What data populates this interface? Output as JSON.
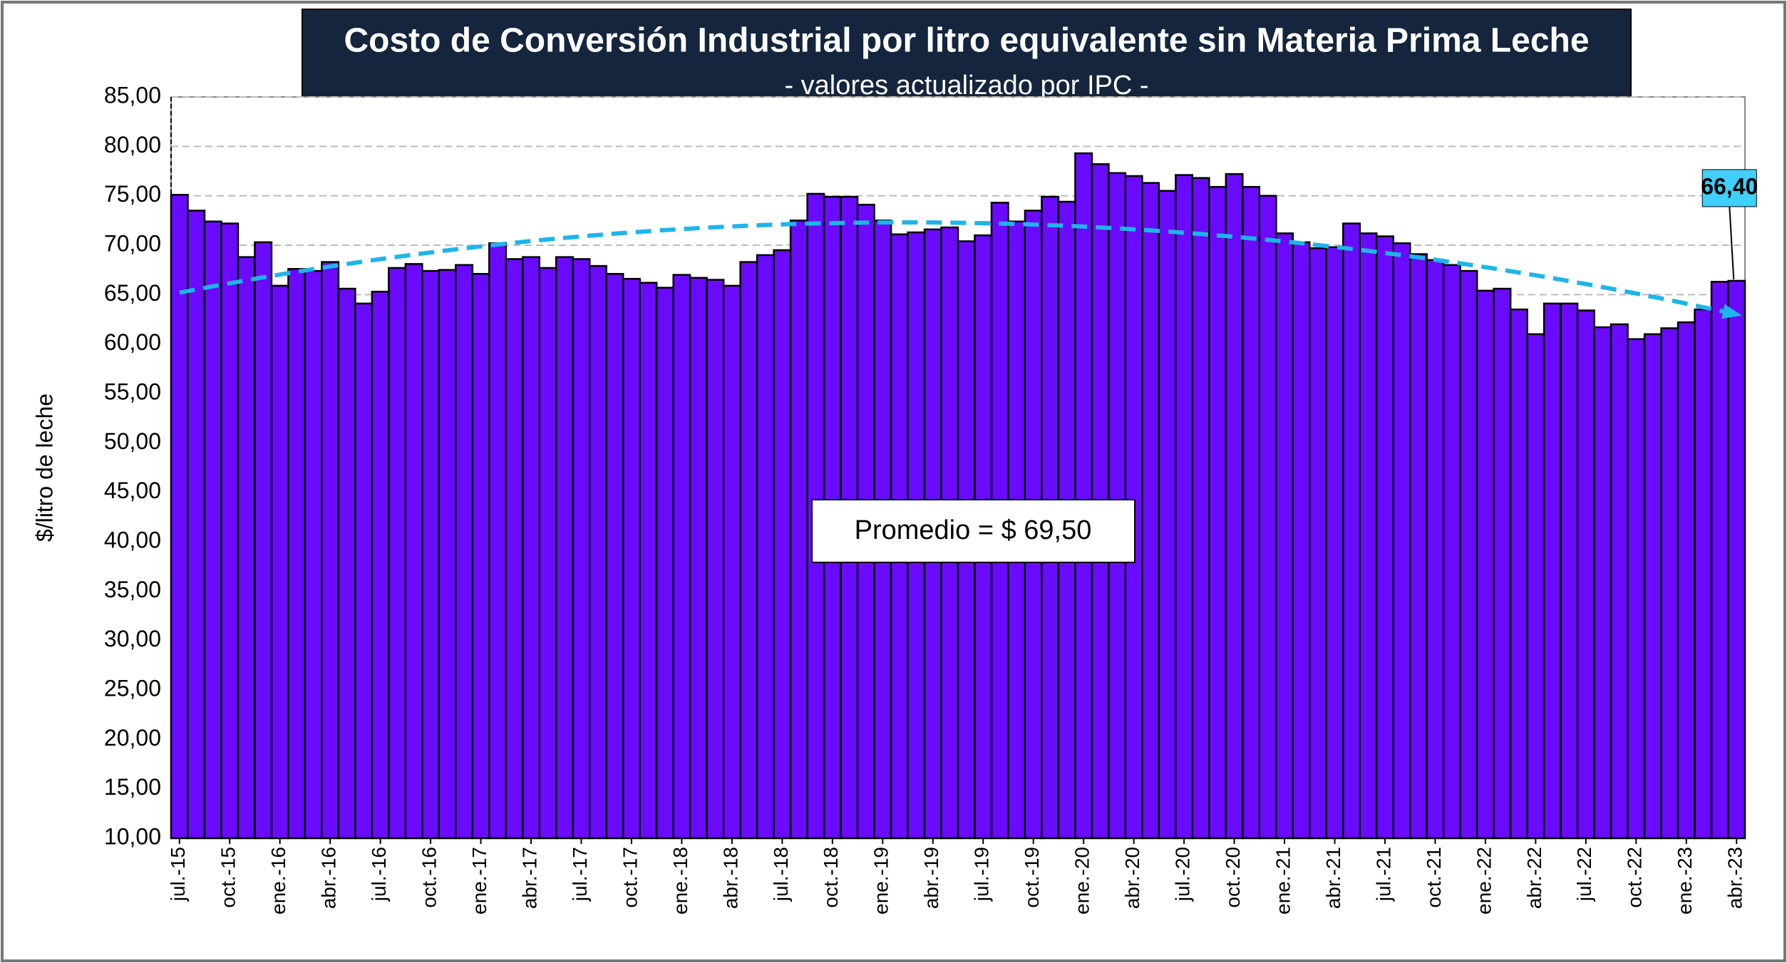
{
  "chart_data": {
    "type": "bar",
    "title": "Costo de Conversión Industrial por litro equivalente sin Materia Prima Leche",
    "subtitle": "- valores actualizado por IPC -",
    "y_label": "$/litro de leche",
    "annotation": "Promedio = $ 69,50",
    "color": "#6a0aff",
    "categories": [
      "jul.-15",
      null,
      null,
      "oct.-15",
      null,
      null,
      "ene.-16",
      null,
      null,
      "abr.-16",
      null,
      null,
      "jul.-16",
      null,
      null,
      "oct.-16",
      null,
      null,
      "ene.-17",
      null,
      null,
      "abr.-17",
      null,
      null,
      "jul.-17",
      null,
      null,
      "oct.-17",
      null,
      null,
      "ene.-18",
      null,
      null,
      "abr.-18",
      null,
      null,
      "jul.-18",
      null,
      null,
      "oct.-18",
      null,
      null,
      "ene.-19",
      null,
      null,
      "abr.-19",
      null,
      null,
      "jul.-19",
      null,
      null,
      "oct.-19",
      null,
      null,
      "ene.-20",
      null,
      null,
      "abr.-20",
      null,
      null,
      "jul.-20",
      null,
      null,
      "oct.-20",
      null,
      null,
      "ene.-21",
      null,
      null,
      "abr.-21",
      null,
      null,
      "jul.-21",
      null,
      null,
      "oct.-21",
      null,
      null,
      "ene.-22",
      null,
      null,
      "abr.-22",
      null,
      null,
      "jul.-22",
      null,
      null,
      "oct.-22",
      null,
      null,
      "ene.-23",
      null,
      null,
      "abr.-23"
    ],
    "values": [
      75.1,
      73.5,
      72.4,
      72.2,
      68.8,
      70.3,
      65.9,
      67.6,
      67.4,
      68.3,
      65.6,
      64.1,
      65.3,
      67.7,
      68.1,
      67.4,
      67.5,
      68.0,
      67.1,
      70.2,
      68.6,
      68.8,
      67.7,
      68.8,
      68.6,
      67.9,
      67.1,
      66.6,
      66.2,
      65.7,
      67.0,
      66.7,
      66.5,
      65.9,
      68.3,
      69.0,
      69.5,
      72.5,
      75.2,
      74.9,
      74.9,
      74.1,
      72.5,
      71.1,
      71.3,
      71.6,
      71.8,
      70.4,
      71.0,
      74.3,
      72.4,
      73.5,
      74.9,
      74.4,
      79.3,
      78.2,
      77.3,
      77.0,
      76.3,
      75.5,
      77.1,
      76.8,
      75.9,
      77.2,
      75.9,
      75.0,
      71.2,
      70.3,
      69.7,
      69.8,
      72.2,
      71.2,
      70.9,
      70.2,
      69.1,
      68.5,
      68.0,
      67.4,
      65.4,
      65.6,
      63.5,
      61.0,
      64.1,
      64.1,
      63.4,
      61.7,
      62.0,
      60.5,
      61.0,
      61.6,
      62.2,
      63.5,
      66.3,
      66.4
    ],
    "value_labels": [
      null,
      null,
      null,
      null,
      null,
      null,
      null,
      null,
      null,
      null,
      null,
      null,
      null,
      null,
      null,
      null,
      null,
      null,
      null,
      null,
      null,
      null,
      null,
      null,
      null,
      null,
      null,
      null,
      null,
      null,
      null,
      null,
      null,
      null,
      null,
      null,
      null,
      null,
      null,
      null,
      null,
      null,
      null,
      null,
      null,
      null,
      null,
      null,
      null,
      null,
      null,
      null,
      null,
      null,
      null,
      null,
      null,
      null,
      null,
      null,
      null,
      null,
      null,
      null,
      null,
      null,
      null,
      null,
      null,
      null,
      null,
      null,
      null,
      null,
      null,
      null,
      null,
      null,
      null,
      null,
      null,
      null,
      null,
      null,
      null,
      null,
      null,
      null,
      null,
      null,
      null,
      null,
      null,
      "66,40"
    ],
    "trendline": {
      "color": "#1fb4ea",
      "categories": [
        "jul.-15",
        "abr.-19",
        "abr.-23"
      ],
      "values": [
        65.2,
        72.3,
        63.0
      ]
    },
    "ylim": [
      10,
      85
    ],
    "yticks": [
      {
        "value": 10,
        "label": "10,00"
      },
      {
        "value": 15,
        "label": "15,00"
      },
      {
        "value": 20,
        "label": "20,00"
      },
      {
        "value": 25,
        "label": "25,00"
      },
      {
        "value": 30,
        "label": "30,00"
      },
      {
        "value": 35,
        "label": "35,00"
      },
      {
        "value": 40,
        "label": "40,00"
      },
      {
        "value": 45,
        "label": "45,00"
      },
      {
        "value": 50,
        "label": "50,00"
      },
      {
        "value": 55,
        "label": "55,00"
      },
      {
        "value": 60,
        "label": "60,00"
      },
      {
        "value": 65,
        "label": "65,00"
      },
      {
        "value": 70,
        "label": "70,00"
      },
      {
        "value": 75,
        "label": "75,00"
      },
      {
        "value": 80,
        "label": "80,00"
      },
      {
        "value": 85,
        "label": "85,00"
      }
    ],
    "grid": true
  }
}
